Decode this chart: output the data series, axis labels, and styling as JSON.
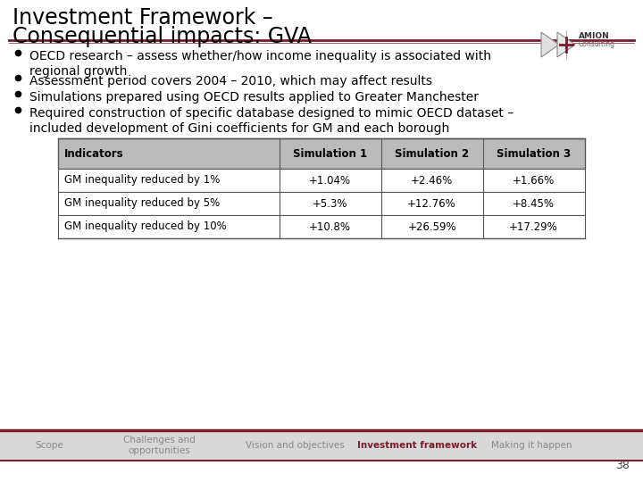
{
  "title_line1": "Investment Framework –",
  "title_line2": "Consequential impacts: GVA",
  "title_fontsize": 17,
  "title_color": "#000000",
  "background_color": "#ffffff",
  "header_line_color": "#7B1C2E",
  "footer_line_color": "#7B1C2E",
  "footer_bg_color": "#d8d8d8",
  "bullet_points": [
    "OECD research – assess whether/how income inequality is associated with\nregional growth",
    "Assessment period covers 2004 – 2010, which may affect results",
    "Simulations prepared using OECD results applied to Greater Manchester",
    "Required construction of specific database designed to mimic OECD dataset –\nincluded development of Gini coefficients for GM and each borough"
  ],
  "bullet_fontsize": 10,
  "bullet_color": "#000000",
  "table_headers": [
    "Indicators",
    "Simulation 1",
    "Simulation 2",
    "Simulation 3"
  ],
  "table_rows": [
    [
      "GM inequality reduced by 1%",
      "+1.04%",
      "+2.46%",
      "+1.66%"
    ],
    [
      "GM inequality reduced by 5%",
      "+5.3%",
      "+12.76%",
      "+8.45%"
    ],
    [
      "GM inequality reduced by 10%",
      "+10.8%",
      "+26.59%",
      "+17.29%"
    ]
  ],
  "table_header_bg": "#bbbbbb",
  "table_row_bg": "#ffffff",
  "table_border_color": "#555555",
  "table_fontsize": 8.5,
  "footer_items": [
    "Scope",
    "Challenges and\nopportunities",
    "Vision and objectives",
    "Investment framework",
    "Making it happen"
  ],
  "footer_active": "Investment framework",
  "footer_active_color": "#7B1C2E",
  "footer_inactive_color": "#888888",
  "footer_fontsize": 7.5,
  "page_number": "38",
  "logo_color": "#7B1C2E"
}
